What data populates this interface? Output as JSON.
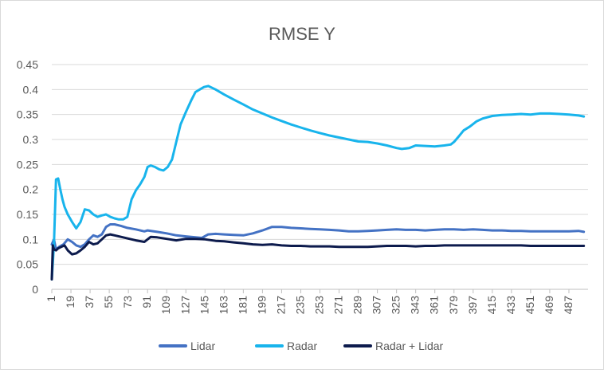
{
  "chart_data": {
    "type": "line",
    "title": "RMSE Y",
    "xlabel": "",
    "ylabel": "",
    "xlim": [
      1,
      505
    ],
    "ylim": [
      0,
      0.45
    ],
    "y_ticks": [
      0,
      0.05,
      0.1,
      0.15,
      0.2,
      0.25,
      0.3,
      0.35,
      0.4,
      0.45
    ],
    "y_tick_labels": [
      "0",
      "0.05",
      "0.1",
      "0.15",
      "0.2",
      "0.25",
      "0.3",
      "0.35",
      "0.4",
      "0.45"
    ],
    "x_ticks": [
      1,
      19,
      37,
      55,
      73,
      91,
      109,
      127,
      145,
      163,
      181,
      199,
      217,
      235,
      253,
      271,
      289,
      307,
      325,
      343,
      361,
      379,
      397,
      415,
      433,
      451,
      469,
      487
    ],
    "x_tick_labels": [
      "1",
      "19",
      "37",
      "55",
      "73",
      "91",
      "109",
      "127",
      "145",
      "163",
      "181",
      "199",
      "217",
      "235",
      "253",
      "271",
      "289",
      "307",
      "325",
      "343",
      "361",
      "379",
      "397",
      "415",
      "433",
      "451",
      "469",
      "487"
    ],
    "grid": "horizontal",
    "legend_position": "bottom",
    "series": [
      {
        "name": "Lidar",
        "color": "#4472c4",
        "x": [
          1,
          3,
          5,
          8,
          12,
          16,
          20,
          24,
          28,
          32,
          36,
          40,
          44,
          48,
          52,
          56,
          60,
          66,
          72,
          80,
          88,
          91,
          100,
          109,
          118,
          127,
          136,
          142,
          148,
          155,
          163,
          172,
          181,
          190,
          199,
          208,
          217,
          226,
          235,
          244,
          253,
          262,
          271,
          280,
          289,
          298,
          307,
          316,
          325,
          334,
          343,
          352,
          361,
          370,
          379,
          388,
          397,
          406,
          415,
          424,
          433,
          442,
          451,
          460,
          469,
          478,
          487,
          496,
          501
        ],
        "values": [
          0.09,
          0.1,
          0.08,
          0.085,
          0.09,
          0.1,
          0.095,
          0.088,
          0.085,
          0.09,
          0.1,
          0.108,
          0.105,
          0.11,
          0.125,
          0.13,
          0.13,
          0.127,
          0.123,
          0.12,
          0.116,
          0.118,
          0.115,
          0.112,
          0.108,
          0.106,
          0.104,
          0.103,
          0.11,
          0.111,
          0.11,
          0.109,
          0.108,
          0.112,
          0.118,
          0.125,
          0.125,
          0.123,
          0.122,
          0.121,
          0.12,
          0.119,
          0.118,
          0.116,
          0.116,
          0.117,
          0.118,
          0.119,
          0.12,
          0.119,
          0.119,
          0.118,
          0.119,
          0.12,
          0.12,
          0.119,
          0.12,
          0.119,
          0.118,
          0.118,
          0.117,
          0.117,
          0.116,
          0.116,
          0.116,
          0.116,
          0.116,
          0.117,
          0.115
        ]
      },
      {
        "name": "Radar",
        "color": "#18b4ec",
        "x": [
          1,
          3,
          5,
          7,
          9,
          11,
          13,
          16,
          20,
          24,
          28,
          32,
          36,
          40,
          44,
          48,
          52,
          56,
          60,
          64,
          68,
          72,
          76,
          80,
          84,
          88,
          91,
          94,
          98,
          102,
          106,
          110,
          114,
          118,
          122,
          127,
          132,
          136,
          140,
          144,
          148,
          155,
          163,
          172,
          181,
          190,
          199,
          208,
          217,
          226,
          235,
          244,
          253,
          262,
          271,
          280,
          289,
          298,
          307,
          316,
          325,
          330,
          337,
          343,
          352,
          361,
          370,
          376,
          379,
          383,
          388,
          394,
          400,
          406,
          415,
          424,
          433,
          442,
          451,
          460,
          469,
          478,
          487,
          496,
          501
        ],
        "values": [
          0.02,
          0.09,
          0.22,
          0.222,
          0.2,
          0.18,
          0.165,
          0.15,
          0.135,
          0.122,
          0.135,
          0.16,
          0.158,
          0.15,
          0.145,
          0.148,
          0.15,
          0.145,
          0.142,
          0.14,
          0.14,
          0.145,
          0.18,
          0.198,
          0.21,
          0.225,
          0.245,
          0.248,
          0.245,
          0.24,
          0.238,
          0.245,
          0.26,
          0.295,
          0.33,
          0.355,
          0.378,
          0.395,
          0.4,
          0.405,
          0.407,
          0.4,
          0.39,
          0.38,
          0.37,
          0.36,
          0.352,
          0.344,
          0.337,
          0.33,
          0.324,
          0.318,
          0.313,
          0.308,
          0.304,
          0.3,
          0.296,
          0.295,
          0.292,
          0.288,
          0.283,
          0.281,
          0.283,
          0.288,
          0.287,
          0.286,
          0.288,
          0.29,
          0.295,
          0.305,
          0.318,
          0.326,
          0.336,
          0.342,
          0.347,
          0.349,
          0.35,
          0.351,
          0.35,
          0.352,
          0.352,
          0.351,
          0.35,
          0.348,
          0.346
        ]
      },
      {
        "name": "Radar + Lidar",
        "color": "#0d1b4d",
        "x": [
          1,
          2,
          3,
          5,
          7,
          10,
          13,
          16,
          20,
          24,
          28,
          32,
          36,
          40,
          44,
          48,
          52,
          56,
          60,
          66,
          72,
          80,
          88,
          91,
          94,
          100,
          109,
          118,
          127,
          136,
          145,
          155,
          163,
          172,
          181,
          190,
          199,
          208,
          217,
          226,
          235,
          244,
          253,
          262,
          271,
          280,
          289,
          298,
          307,
          316,
          325,
          334,
          343,
          352,
          361,
          370,
          379,
          388,
          397,
          406,
          415,
          424,
          433,
          442,
          451,
          460,
          469,
          478,
          487,
          496,
          501
        ],
        "values": [
          0.02,
          0.088,
          0.08,
          0.078,
          0.082,
          0.085,
          0.088,
          0.078,
          0.07,
          0.072,
          0.078,
          0.085,
          0.095,
          0.09,
          0.092,
          0.1,
          0.108,
          0.11,
          0.108,
          0.105,
          0.102,
          0.098,
          0.095,
          0.1,
          0.105,
          0.104,
          0.101,
          0.098,
          0.101,
          0.101,
          0.1,
          0.097,
          0.096,
          0.094,
          0.092,
          0.09,
          0.089,
          0.09,
          0.088,
          0.087,
          0.087,
          0.086,
          0.086,
          0.086,
          0.085,
          0.085,
          0.085,
          0.085,
          0.086,
          0.087,
          0.087,
          0.087,
          0.086,
          0.087,
          0.087,
          0.088,
          0.088,
          0.088,
          0.088,
          0.088,
          0.088,
          0.088,
          0.088,
          0.088,
          0.087,
          0.087,
          0.087,
          0.087,
          0.087,
          0.087,
          0.087
        ]
      }
    ]
  }
}
